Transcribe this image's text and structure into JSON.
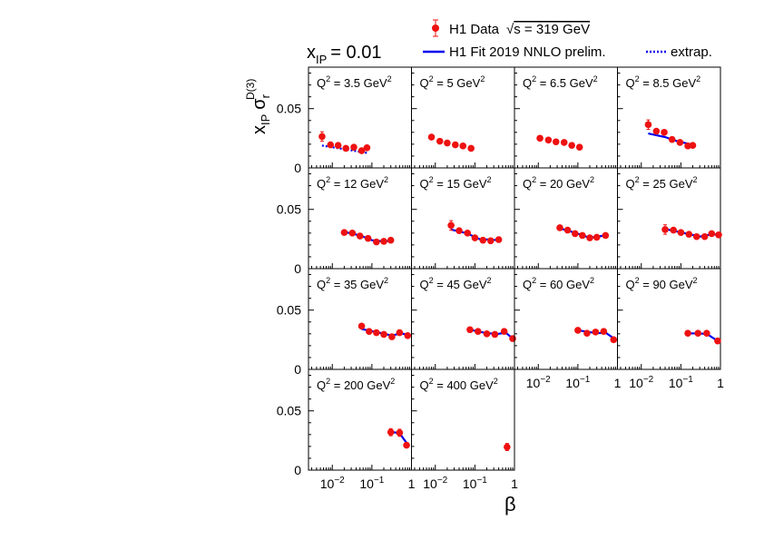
{
  "figure_label": {
    "prefix": "x",
    "sub": "IP",
    "eq": "= 0.01"
  },
  "legend": {
    "data_label": "H1 Data",
    "sqrt_sym": "√",
    "energy_label": "s = 319 GeV",
    "fit_label": "H1 Fit 2019 NNLO prelim.",
    "extrap_label": "extrap."
  },
  "colors": {
    "data": "#ee1111",
    "fit": "#0000ee"
  },
  "chart_data": {
    "type": "scatter",
    "title": "x_IP = 0.01",
    "xlabel": "β",
    "ylabel": "x_IP σ_r^D(3)",
    "xscale": "log",
    "xlim": [
      0.0025,
      1.0
    ],
    "ylim": [
      0,
      0.085
    ],
    "y_ticks": [
      "0.05",
      "0"
    ],
    "x_ticks": [
      "10⁻²",
      "10⁻¹",
      "1"
    ],
    "panels": [
      {
        "q2": "3.5",
        "points": [
          [
            0.0055,
            0.0265,
            0.004
          ],
          [
            0.009,
            0.0195,
            0.0
          ],
          [
            0.014,
            0.019,
            0.0
          ],
          [
            0.022,
            0.0165,
            0.0
          ],
          [
            0.035,
            0.0175,
            0.0
          ],
          [
            0.055,
            0.0145,
            0.0
          ],
          [
            0.075,
            0.017,
            0.0
          ]
        ],
        "extrap": [
          [
            0.0055,
            0.0188
          ],
          [
            0.015,
            0.0165
          ],
          [
            0.035,
            0.0145
          ],
          [
            0.08,
            0.0125
          ]
        ],
        "fit": []
      },
      {
        "q2": "5",
        "points": [
          [
            0.008,
            0.026,
            0.0
          ],
          [
            0.013,
            0.0225,
            0.0
          ],
          [
            0.02,
            0.021,
            0.0
          ],
          [
            0.032,
            0.0195,
            0.0
          ],
          [
            0.05,
            0.0185,
            0.0
          ],
          [
            0.08,
            0.0165,
            0.0
          ]
        ],
        "extrap": [],
        "fit": []
      },
      {
        "q2": "6.5",
        "points": [
          [
            0.011,
            0.025,
            0.0
          ],
          [
            0.018,
            0.0235,
            0.0
          ],
          [
            0.028,
            0.022,
            0.0
          ],
          [
            0.045,
            0.0215,
            0.0
          ],
          [
            0.07,
            0.019,
            0.0
          ],
          [
            0.11,
            0.0175,
            0.0
          ]
        ],
        "extrap": [],
        "fit": []
      },
      {
        "q2": "8.5",
        "points": [
          [
            0.015,
            0.0365,
            0.004
          ],
          [
            0.024,
            0.031,
            0.0
          ],
          [
            0.038,
            0.03,
            0.0
          ],
          [
            0.06,
            0.024,
            0.0
          ],
          [
            0.095,
            0.0215,
            0.0
          ],
          [
            0.15,
            0.0185,
            0.0
          ],
          [
            0.2,
            0.019,
            0.0
          ]
        ],
        "extrap": [],
        "fit": [
          [
            0.015,
            0.029
          ],
          [
            0.04,
            0.026
          ],
          [
            0.08,
            0.0225
          ],
          [
            0.2,
            0.0195
          ]
        ]
      },
      {
        "q2": "12",
        "points": [
          [
            0.02,
            0.0305,
            0.0
          ],
          [
            0.032,
            0.03,
            0.0
          ],
          [
            0.05,
            0.0275,
            0.0
          ],
          [
            0.08,
            0.0255,
            0.0
          ],
          [
            0.13,
            0.0225,
            0.0
          ],
          [
            0.2,
            0.023,
            0.0
          ],
          [
            0.3,
            0.024,
            0.0
          ]
        ],
        "extrap": [],
        "fit": [
          [
            0.02,
            0.031
          ],
          [
            0.05,
            0.028
          ],
          [
            0.1,
            0.024
          ],
          [
            0.2,
            0.023
          ],
          [
            0.3,
            0.0235
          ]
        ]
      },
      {
        "q2": "15",
        "points": [
          [
            0.025,
            0.0365,
            0.004
          ],
          [
            0.04,
            0.032,
            0.0
          ],
          [
            0.065,
            0.03,
            0.0
          ],
          [
            0.1,
            0.026,
            0.0
          ],
          [
            0.16,
            0.024,
            0.0
          ],
          [
            0.25,
            0.0235,
            0.0
          ],
          [
            0.4,
            0.0245,
            0.0
          ]
        ],
        "extrap": [],
        "fit": [
          [
            0.025,
            0.033
          ],
          [
            0.06,
            0.03
          ],
          [
            0.13,
            0.025
          ],
          [
            0.4,
            0.024
          ]
        ]
      },
      {
        "q2": "20",
        "points": [
          [
            0.035,
            0.0345,
            0.0
          ],
          [
            0.055,
            0.0325,
            0.0
          ],
          [
            0.085,
            0.0295,
            0.0
          ],
          [
            0.13,
            0.028,
            0.0
          ],
          [
            0.2,
            0.026,
            0.0
          ],
          [
            0.3,
            0.0265,
            0.0
          ],
          [
            0.5,
            0.028,
            0.0
          ]
        ],
        "extrap": [],
        "fit": [
          [
            0.035,
            0.034
          ],
          [
            0.09,
            0.03
          ],
          [
            0.2,
            0.026
          ],
          [
            0.5,
            0.028
          ]
        ]
      },
      {
        "q2": "25",
        "points": [
          [
            0.04,
            0.033,
            0.004
          ],
          [
            0.065,
            0.0325,
            0.0
          ],
          [
            0.1,
            0.0305,
            0.0
          ],
          [
            0.16,
            0.029,
            0.0
          ],
          [
            0.25,
            0.027,
            0.0
          ],
          [
            0.4,
            0.027,
            0.0
          ],
          [
            0.6,
            0.0295,
            0.0
          ],
          [
            0.9,
            0.0285,
            0.0
          ]
        ],
        "extrap": [],
        "fit": [
          [
            0.04,
            0.0335
          ],
          [
            0.12,
            0.03
          ],
          [
            0.3,
            0.027
          ],
          [
            0.6,
            0.029
          ],
          [
            0.95,
            0.0285
          ]
        ]
      },
      {
        "q2": "35",
        "points": [
          [
            0.055,
            0.0365,
            0.0
          ],
          [
            0.085,
            0.032,
            0.0
          ],
          [
            0.13,
            0.031,
            0.0
          ],
          [
            0.2,
            0.0295,
            0.0
          ],
          [
            0.32,
            0.0275,
            0.0
          ],
          [
            0.5,
            0.031,
            0.0
          ],
          [
            0.8,
            0.0285,
            0.0
          ]
        ],
        "extrap": [],
        "fit": [
          [
            0.055,
            0.034
          ],
          [
            0.15,
            0.031
          ],
          [
            0.32,
            0.0285
          ],
          [
            0.55,
            0.0305
          ],
          [
            0.9,
            0.0285
          ]
        ]
      },
      {
        "q2": "45",
        "points": [
          [
            0.075,
            0.0335,
            0.0
          ],
          [
            0.12,
            0.032,
            0.0
          ],
          [
            0.2,
            0.03,
            0.0
          ],
          [
            0.32,
            0.0295,
            0.0
          ],
          [
            0.55,
            0.032,
            0.0
          ],
          [
            0.9,
            0.026,
            0.0
          ]
        ],
        "extrap": [],
        "fit": [
          [
            0.075,
            0.0335
          ],
          [
            0.2,
            0.0305
          ],
          [
            0.4,
            0.03
          ],
          [
            0.6,
            0.031
          ],
          [
            0.95,
            0.0255
          ]
        ]
      },
      {
        "q2": "60",
        "points": [
          [
            0.1,
            0.033,
            0.0
          ],
          [
            0.17,
            0.0305,
            0.0
          ],
          [
            0.28,
            0.0315,
            0.0
          ],
          [
            0.45,
            0.032,
            0.0
          ],
          [
            0.8,
            0.025,
            0.0
          ]
        ],
        "extrap": [],
        "fit": [
          [
            0.1,
            0.033
          ],
          [
            0.3,
            0.0305
          ],
          [
            0.5,
            0.031
          ],
          [
            0.95,
            0.0245
          ]
        ]
      },
      {
        "q2": "90",
        "points": [
          [
            0.15,
            0.0305,
            0.0
          ],
          [
            0.27,
            0.0305,
            0.0
          ],
          [
            0.45,
            0.0305,
            0.0
          ],
          [
            0.85,
            0.024,
            0.0
          ]
        ],
        "extrap": [],
        "fit": [
          [
            0.15,
            0.0305
          ],
          [
            0.45,
            0.03
          ],
          [
            0.95,
            0.023
          ]
        ]
      },
      {
        "q2": "200",
        "points": [
          [
            0.3,
            0.032,
            0.003
          ],
          [
            0.5,
            0.0315,
            0.003
          ],
          [
            0.75,
            0.021,
            0.0
          ]
        ],
        "extrap": [],
        "fit": [
          [
            0.3,
            0.0325
          ],
          [
            0.5,
            0.031
          ],
          [
            0.85,
            0.0205
          ]
        ]
      },
      {
        "q2": "400",
        "points": [
          [
            0.65,
            0.0195,
            0.003
          ]
        ],
        "extrap": [],
        "fit": []
      }
    ]
  }
}
